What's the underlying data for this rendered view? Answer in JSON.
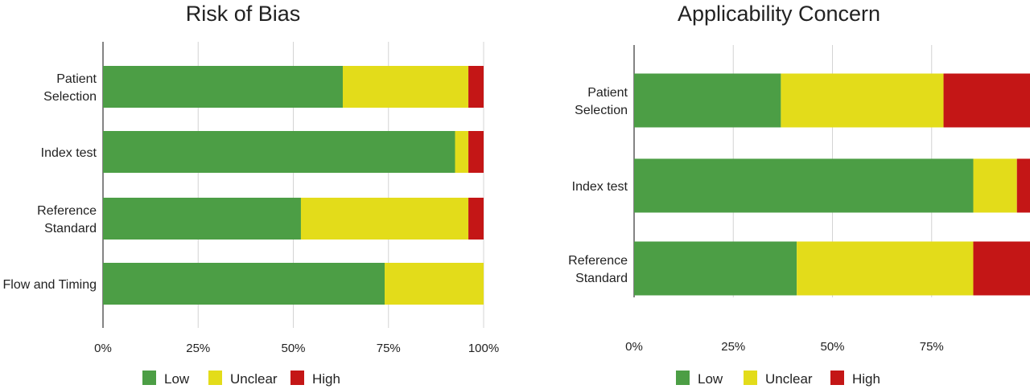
{
  "chart_data": [
    {
      "type": "bar",
      "orientation": "horizontal",
      "stacked": true,
      "title": "Risk of Bias",
      "categories": [
        [
          "Patient",
          "Selection"
        ],
        [
          "Index test"
        ],
        [
          "Reference",
          "Standard"
        ],
        [
          "Flow and Timing"
        ]
      ],
      "xlim": [
        0,
        100
      ],
      "xticks": [
        "0%",
        "25%",
        "50%",
        "75%",
        "100%"
      ],
      "grid": true,
      "legend_position": "bottom",
      "series": [
        {
          "name": "Low",
          "color": "#4c9e45",
          "values": [
            63,
            92.5,
            52,
            74
          ]
        },
        {
          "name": "Unclear",
          "color": "#e3dc1a",
          "values": [
            33,
            3.5,
            44,
            26
          ]
        },
        {
          "name": "High",
          "color": "#c41616",
          "values": [
            4,
            4,
            4,
            0
          ]
        }
      ]
    },
    {
      "type": "bar",
      "orientation": "horizontal",
      "stacked": true,
      "title": "Applicability Concern",
      "categories": [
        [
          "Patient",
          "Selection"
        ],
        [
          "Index test"
        ],
        [
          "Reference",
          "Standard"
        ]
      ],
      "xlim": [
        0,
        100
      ],
      "xticks": [
        "0%",
        "25%",
        "50%",
        "75%"
      ],
      "grid": true,
      "legend_position": "bottom",
      "series": [
        {
          "name": "Low",
          "color": "#4c9e45",
          "values": [
            37,
            85.5,
            41
          ]
        },
        {
          "name": "Unclear",
          "color": "#e3dc1a",
          "values": [
            41,
            11,
            44.5
          ]
        },
        {
          "name": "High",
          "color": "#c41616",
          "values": [
            22,
            3.5,
            14.5
          ]
        }
      ]
    }
  ]
}
